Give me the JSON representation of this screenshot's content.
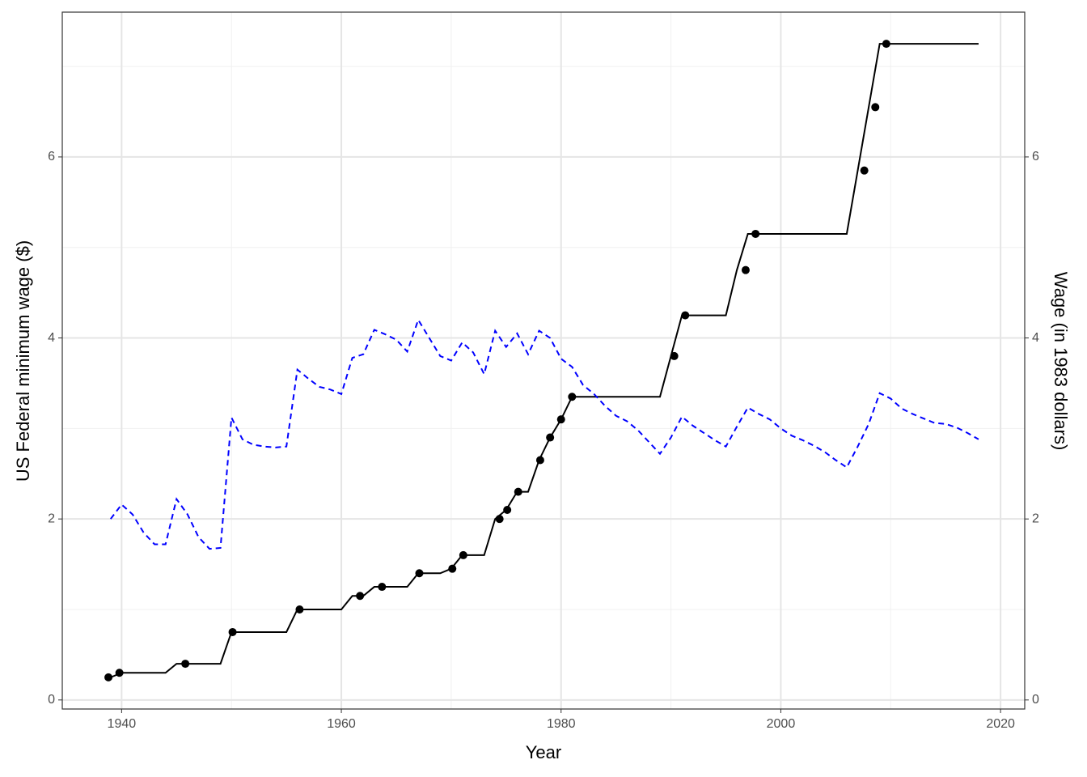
{
  "chart_data": {
    "type": "line",
    "x_label": "Year",
    "y_label": "US Federal minimum wage ($)",
    "y2_label": "Wage (in 1983 dollars)",
    "xlim": [
      1934.6,
      2022.2
    ],
    "xticks": [
      1940,
      1960,
      1980,
      2000,
      2020
    ],
    "ylim": [
      -0.1,
      7.6
    ],
    "yticks": [
      0,
      2,
      4,
      6
    ],
    "y2lim": [
      -0.1,
      7.6
    ],
    "y2ticks": [
      0,
      2,
      4,
      6
    ],
    "grid": true,
    "minor_grid": true,
    "series": [
      {
        "type": "line",
        "color": "#000000",
        "linestyle": "solid",
        "x": [
          1939,
          1940,
          1941,
          1942,
          1943,
          1944,
          1945,
          1946,
          1947,
          1948,
          1949,
          1950,
          1951,
          1952,
          1953,
          1954,
          1955,
          1956,
          1957,
          1958,
          1959,
          1960,
          1961,
          1962,
          1963,
          1964,
          1965,
          1966,
          1967,
          1968,
          1969,
          1970,
          1971,
          1972,
          1973,
          1974,
          1975,
          1976,
          1977,
          1978,
          1979,
          1980,
          1981,
          1982,
          1983,
          1984,
          1985,
          1986,
          1987,
          1988,
          1989,
          1990,
          1991,
          1992,
          1993,
          1994,
          1995,
          1996,
          1997,
          1998,
          1999,
          2000,
          2001,
          2002,
          2003,
          2004,
          2005,
          2006,
          2007,
          2008,
          2009,
          2010,
          2011,
          2012,
          2013,
          2014,
          2015,
          2016,
          2017,
          2018
        ],
        "values": [
          0.25,
          0.3,
          0.3,
          0.3,
          0.3,
          0.3,
          0.4,
          0.4,
          0.4,
          0.4,
          0.4,
          0.75,
          0.75,
          0.75,
          0.75,
          0.75,
          0.75,
          1.0,
          1.0,
          1.0,
          1.0,
          1.0,
          1.15,
          1.15,
          1.25,
          1.25,
          1.25,
          1.25,
          1.4,
          1.4,
          1.4,
          1.45,
          1.6,
          1.6,
          1.6,
          2.0,
          2.1,
          2.3,
          2.3,
          2.65,
          2.9,
          3.1,
          3.35,
          3.35,
          3.35,
          3.35,
          3.35,
          3.35,
          3.35,
          3.35,
          3.35,
          3.8,
          4.25,
          4.25,
          4.25,
          4.25,
          4.25,
          4.75,
          5.15,
          5.15,
          5.15,
          5.15,
          5.15,
          5.15,
          5.15,
          5.15,
          5.15,
          5.15,
          5.85,
          6.55,
          7.25,
          7.25,
          7.25,
          7.25,
          7.25,
          7.25,
          7.25,
          7.25,
          7.25,
          7.25
        ]
      },
      {
        "type": "scatter",
        "color": "#000000",
        "x": [
          1938.8,
          1939.8,
          1945.8,
          1950.1,
          1956.2,
          1961.7,
          1963.7,
          1967.1,
          1970.1,
          1971.1,
          1974.4,
          1975.1,
          1976.1,
          1978.1,
          1979.0,
          1980.0,
          1981.0,
          1990.3,
          1991.3,
          1996.8,
          1997.7,
          2007.6,
          2008.6,
          2009.6
        ],
        "values": [
          0.25,
          0.3,
          0.4,
          0.75,
          1.0,
          1.15,
          1.25,
          1.4,
          1.45,
          1.6,
          2.0,
          2.1,
          2.3,
          2.65,
          2.9,
          3.1,
          3.35,
          3.8,
          4.25,
          4.75,
          5.15,
          5.85,
          6.55,
          7.25
        ]
      },
      {
        "type": "line",
        "color": "#0000ff",
        "linestyle": "dashed",
        "axis": "y2",
        "x": [
          1939,
          1940,
          1941,
          1942,
          1943,
          1944,
          1945,
          1946,
          1947,
          1948,
          1949,
          1950,
          1951,
          1952,
          1953,
          1954,
          1955,
          1956,
          1957,
          1958,
          1959,
          1960,
          1961,
          1962,
          1963,
          1964,
          1965,
          1966,
          1967,
          1968,
          1969,
          1970,
          1971,
          1972,
          1973,
          1974,
          1975,
          1976,
          1977,
          1978,
          1979,
          1980,
          1981,
          1982,
          1983,
          1984,
          1985,
          1986,
          1987,
          1988,
          1989,
          1990,
          1991,
          1992,
          1993,
          1994,
          1995,
          1996,
          1997,
          1998,
          1999,
          2000,
          2001,
          2002,
          2003,
          2004,
          2005,
          2006,
          2007,
          2008,
          2009,
          2010,
          2011,
          2012,
          2013,
          2014,
          2015,
          2016,
          2017,
          2018
        ],
        "values": [
          2.0,
          2.16,
          2.05,
          1.85,
          1.72,
          1.72,
          2.22,
          2.05,
          1.8,
          1.67,
          1.68,
          3.12,
          2.88,
          2.82,
          2.8,
          2.79,
          2.8,
          3.65,
          3.55,
          3.46,
          3.43,
          3.38,
          3.78,
          3.82,
          4.09,
          4.04,
          3.98,
          3.85,
          4.2,
          4.0,
          3.8,
          3.75,
          3.95,
          3.84,
          3.6,
          4.08,
          3.9,
          4.05,
          3.82,
          4.08,
          4.0,
          3.77,
          3.68,
          3.48,
          3.38,
          3.25,
          3.14,
          3.08,
          2.98,
          2.85,
          2.72,
          2.9,
          3.13,
          3.03,
          2.95,
          2.87,
          2.8,
          3.02,
          3.23,
          3.16,
          3.1,
          3.0,
          2.92,
          2.87,
          2.81,
          2.74,
          2.65,
          2.57,
          2.8,
          3.05,
          3.39,
          3.33,
          3.22,
          3.16,
          3.11,
          3.06,
          3.05,
          3.01,
          2.95,
          2.88
        ]
      }
    ]
  }
}
